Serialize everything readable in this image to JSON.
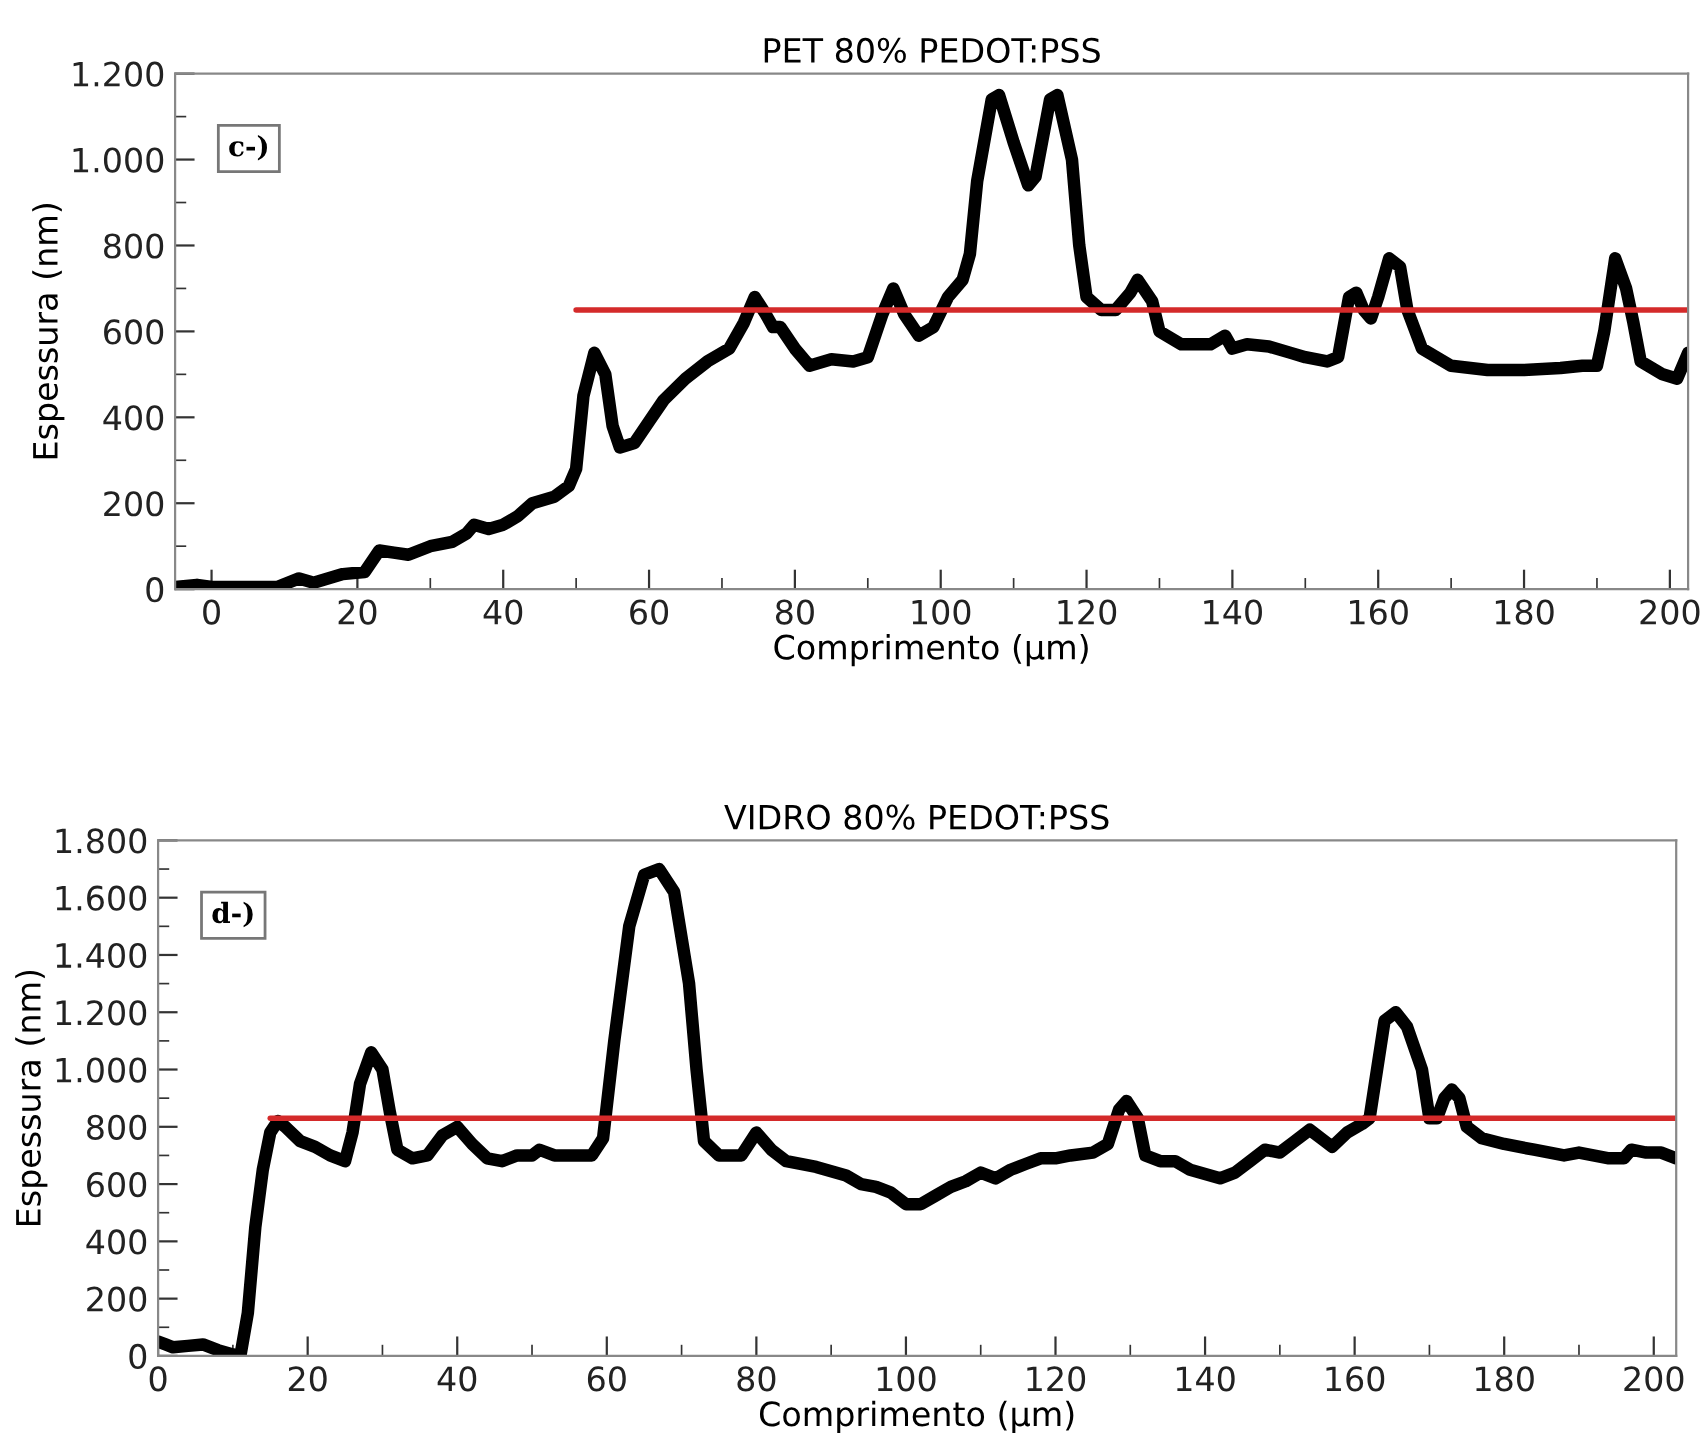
{
  "chart_data": [
    {
      "type": "line",
      "title": "PET 80% PEDOT:PSS",
      "xlabel": "Comprimento (μm)",
      "ylabel": "Espessura (nm)",
      "annotations": [
        "c-)"
      ],
      "xlim": [
        -5,
        202.5
      ],
      "ylim": [
        0,
        1200
      ],
      "xticks": [
        0,
        {
          "value": 10,
          "label": null
        },
        20,
        {
          "value": 30,
          "label": null
        },
        40,
        {
          "value": 50,
          "label": null
        },
        60,
        {
          "value": 70,
          "label": null
        },
        80,
        {
          "value": 90,
          "label": null
        },
        100,
        {
          "value": 110,
          "label": null
        },
        120,
        {
          "value": 130,
          "label": null
        },
        140,
        {
          "value": 150,
          "label": null
        },
        160,
        {
          "value": 170,
          "label": null
        },
        180,
        {
          "value": 190,
          "label": null
        },
        200
      ],
      "yticks": [
        0,
        {
          "value": 100,
          "label": null
        },
        200,
        {
          "value": 300,
          "label": null
        },
        400,
        {
          "value": 500,
          "label": null
        },
        600,
        {
          "value": 700,
          "label": null
        },
        800,
        {
          "value": 900,
          "label": null
        },
        {
          "value": 1000,
          "label": "1.000"
        },
        {
          "value": 1100,
          "label": null
        },
        {
          "value": 1200,
          "label": "1.200"
        }
      ],
      "series": [
        {
          "color": "#000000",
          "x": [
            -5,
            -2,
            0,
            5,
            9,
            12,
            14,
            18,
            21,
            23,
            25,
            27,
            30,
            33,
            35,
            36,
            38,
            40,
            42,
            44,
            47,
            49,
            50,
            51,
            52.5,
            54,
            55,
            56,
            58,
            60,
            62,
            65,
            68,
            71,
            73,
            74.5,
            76,
            77,
            78,
            80,
            82,
            85,
            88,
            90,
            92,
            93.5,
            95,
            97,
            99,
            101,
            103,
            104,
            105,
            107,
            108,
            110,
            112,
            113,
            115,
            116,
            118,
            119,
            120,
            122,
            124,
            126,
            127,
            129,
            130,
            133,
            137,
            139,
            140,
            142,
            145,
            148,
            150,
            153,
            154.5,
            156,
            157,
            158,
            159,
            160,
            161.5,
            163,
            164,
            166,
            170,
            175,
            180,
            185,
            188,
            190,
            191,
            192.5,
            194,
            195,
            196,
            199,
            201,
            202.5
          ],
          "values": [
            5,
            10,
            5,
            5,
            5,
            25,
            15,
            35,
            40,
            90,
            85,
            80,
            100,
            110,
            130,
            150,
            140,
            150,
            170,
            200,
            215,
            240,
            280,
            450,
            550,
            500,
            380,
            330,
            340,
            390,
            440,
            490,
            530,
            560,
            620,
            680,
            640,
            610,
            610,
            560,
            520,
            535,
            530,
            540,
            640,
            700,
            640,
            590,
            610,
            680,
            720,
            780,
            950,
            1140,
            1150,
            1040,
            940,
            960,
            1140,
            1150,
            1000,
            800,
            680,
            650,
            650,
            690,
            720,
            670,
            600,
            570,
            570,
            590,
            560,
            570,
            565,
            550,
            540,
            530,
            540,
            680,
            690,
            650,
            630,
            680,
            770,
            750,
            650,
            560,
            520,
            510,
            510,
            515,
            520,
            520,
            600,
            770,
            700,
            620,
            530,
            500,
            490,
            550
          ]
        },
        {
          "color": "#d42a2a",
          "x": [
            50,
            202.5
          ],
          "values": [
            650,
            650
          ]
        }
      ]
    },
    {
      "type": "line",
      "title": "VIDRO 80% PEDOT:PSS",
      "xlabel": "Comprimento (μm)",
      "ylabel": "Espessura (nm)",
      "annotations": [
        "d-)"
      ],
      "xlim": [
        0,
        203
      ],
      "ylim": [
        0,
        1800
      ],
      "xticks": [
        0,
        {
          "value": 10,
          "label": null
        },
        20,
        {
          "value": 30,
          "label": null
        },
        40,
        {
          "value": 50,
          "label": null
        },
        60,
        {
          "value": 70,
          "label": null
        },
        80,
        {
          "value": 90,
          "label": null
        },
        100,
        {
          "value": 110,
          "label": null
        },
        120,
        {
          "value": 130,
          "label": null
        },
        140,
        {
          "value": 150,
          "label": null
        },
        160,
        {
          "value": 170,
          "label": null
        },
        180,
        {
          "value": 190,
          "label": null
        },
        200
      ],
      "yticks": [
        0,
        {
          "value": 100,
          "label": null
        },
        200,
        {
          "value": 300,
          "label": null
        },
        400,
        {
          "value": 500,
          "label": null
        },
        600,
        {
          "value": 700,
          "label": null
        },
        800,
        {
          "value": 900,
          "label": null
        },
        {
          "value": 1000,
          "label": "1.000"
        },
        {
          "value": 1100,
          "label": null
        },
        {
          "value": 1200,
          "label": "1.200"
        },
        {
          "value": 1300,
          "label": null
        },
        {
          "value": 1400,
          "label": "1.400"
        },
        {
          "value": 1500,
          "label": null
        },
        {
          "value": 1600,
          "label": "1.600"
        },
        {
          "value": 1700,
          "label": null
        },
        {
          "value": 1800,
          "label": "1.800"
        }
      ],
      "series": [
        {
          "color": "#000000",
          "x": [
            0,
            1,
            2,
            4,
            6,
            8,
            10,
            11,
            12,
            13,
            14,
            15,
            16,
            17,
            19,
            21,
            23,
            25,
            26,
            27,
            28.5,
            30,
            31,
            32,
            34,
            36,
            38,
            40,
            42,
            44,
            46,
            48,
            50,
            51,
            53,
            55,
            58,
            59.5,
            61,
            63,
            65,
            67,
            69,
            71,
            72,
            73,
            75,
            78,
            80,
            82,
            84,
            88,
            92,
            94,
            96,
            98,
            100,
            102,
            104,
            106,
            108,
            110,
            112,
            114,
            116,
            118,
            120,
            122,
            125,
            127,
            128.5,
            129.5,
            131,
            132,
            134,
            136,
            138,
            142,
            144,
            146,
            148,
            150,
            152,
            154,
            156,
            157,
            159,
            161,
            162,
            163,
            164,
            165.5,
            167,
            169,
            170,
            171,
            172,
            173,
            174,
            175,
            177,
            180,
            184,
            188,
            190,
            194,
            196,
            197,
            199,
            201,
            203
          ],
          "values": [
            50,
            40,
            30,
            35,
            40,
            20,
            5,
            0,
            150,
            450,
            650,
            780,
            820,
            800,
            750,
            730,
            700,
            680,
            780,
            950,
            1060,
            1000,
            850,
            720,
            690,
            700,
            770,
            800,
            740,
            690,
            680,
            700,
            700,
            720,
            700,
            700,
            700,
            760,
            1100,
            1500,
            1680,
            1700,
            1620,
            1300,
            1000,
            750,
            700,
            700,
            780,
            720,
            680,
            660,
            630,
            600,
            590,
            570,
            530,
            530,
            560,
            590,
            610,
            640,
            620,
            650,
            670,
            690,
            690,
            700,
            710,
            740,
            860,
            890,
            830,
            700,
            680,
            680,
            650,
            620,
            640,
            680,
            720,
            710,
            750,
            790,
            750,
            730,
            780,
            810,
            830,
            1000,
            1170,
            1200,
            1150,
            1000,
            830,
            830,
            900,
            930,
            900,
            800,
            760,
            740,
            720,
            700,
            710,
            690,
            690,
            720,
            710,
            710,
            690
          ]
        },
        {
          "color": "#d42a2a",
          "x": [
            15,
            203
          ],
          "values": [
            830,
            830
          ]
        }
      ]
    }
  ]
}
